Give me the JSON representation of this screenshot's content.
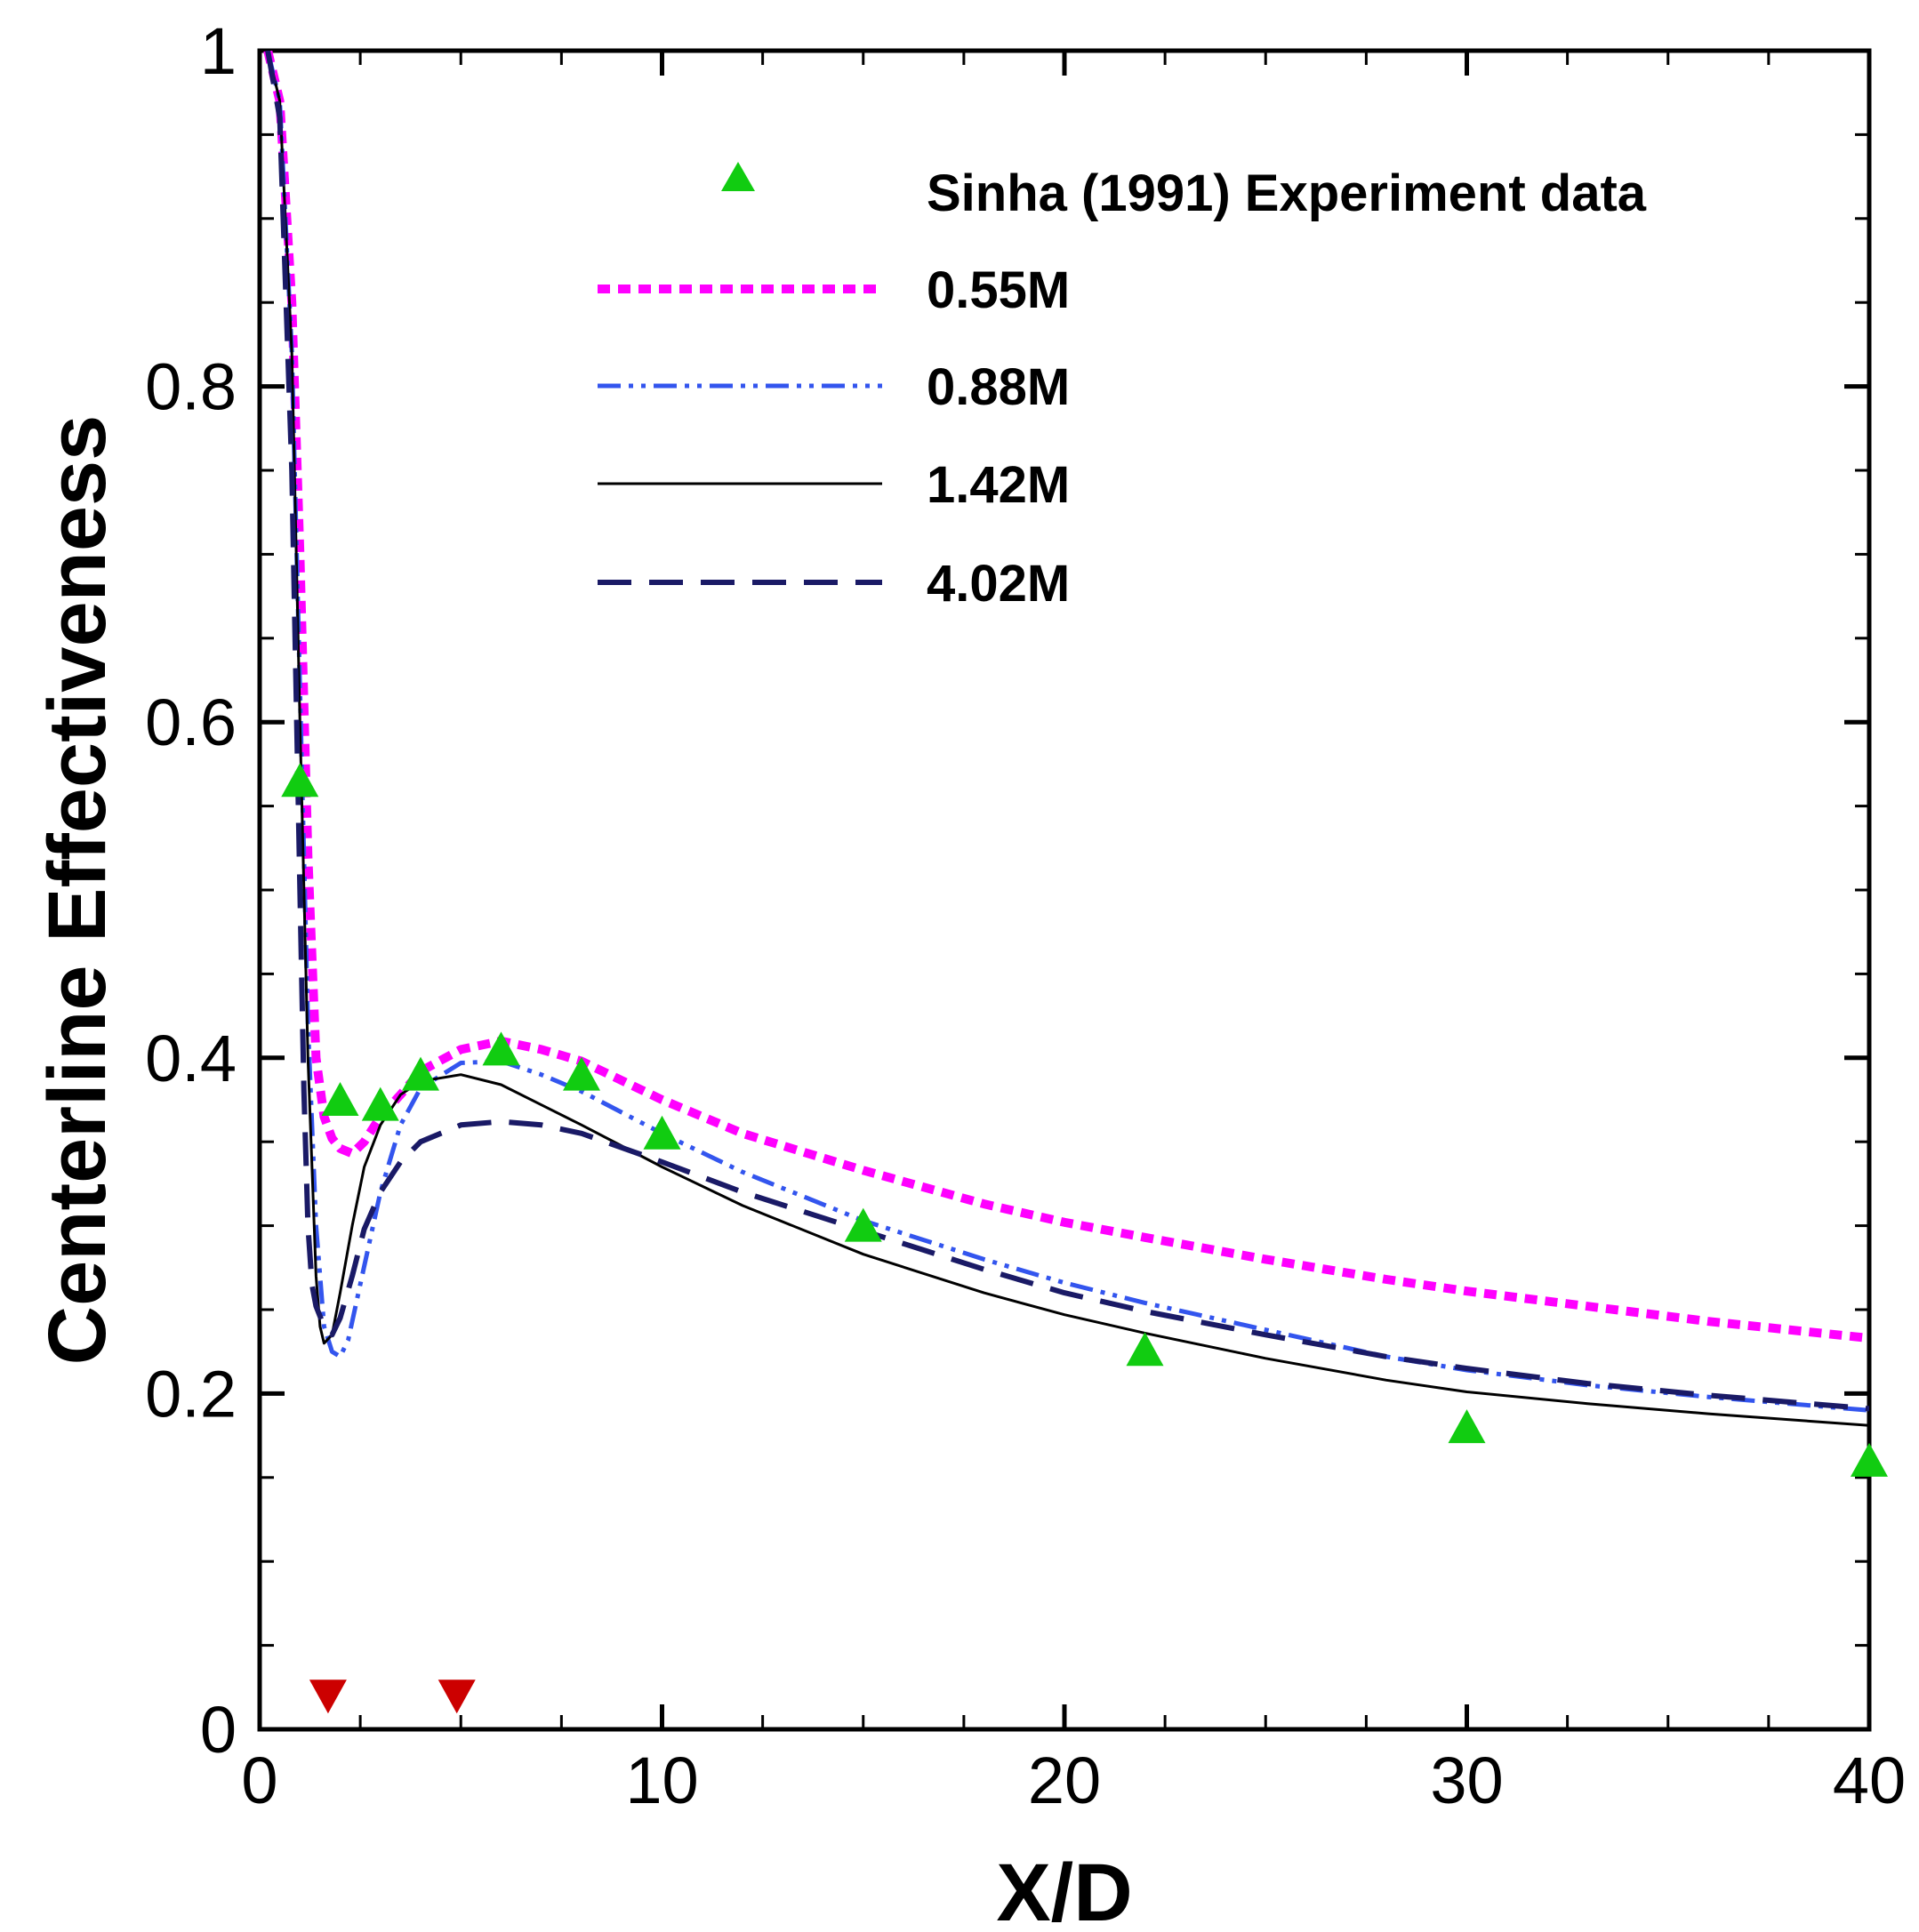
{
  "chart_data": {
    "type": "line",
    "title": "",
    "xlabel": "X/D",
    "ylabel": "Centerline Effectiveness",
    "xlim": [
      0,
      40
    ],
    "ylim": [
      0,
      1
    ],
    "x_ticks": [
      "0",
      "10",
      "20",
      "30",
      "40"
    ],
    "y_ticks": [
      "0",
      "0.2",
      "0.4",
      "0.6",
      "0.8",
      "1"
    ],
    "x_tick_values": [
      0,
      10,
      20,
      30,
      40
    ],
    "y_tick_values": [
      0,
      0.2,
      0.4,
      0.6,
      0.8,
      1
    ],
    "grid": false,
    "legend_position": "top-right",
    "legend": [
      "Sinha (1991) Experiment data",
      "0.55M",
      "0.88M",
      "1.42M",
      "4.02M"
    ],
    "series": [
      {
        "name": "0.55M",
        "style": "dotted",
        "color": "#ff00ff",
        "x": [
          0.2,
          0.5,
          0.8,
          1.0,
          1.2,
          1.4,
          1.6,
          1.8,
          2.0,
          2.3,
          2.6,
          3.0,
          3.5,
          4.0,
          5.0,
          6.0,
          7.0,
          8.0,
          10,
          12,
          15,
          18,
          20,
          22,
          25,
          28,
          30,
          33,
          36,
          40
        ],
        "y": [
          1.0,
          0.97,
          0.85,
          0.7,
          0.52,
          0.4,
          0.365,
          0.352,
          0.346,
          0.343,
          0.35,
          0.365,
          0.378,
          0.392,
          0.405,
          0.41,
          0.405,
          0.398,
          0.375,
          0.355,
          0.333,
          0.313,
          0.302,
          0.293,
          0.28,
          0.268,
          0.261,
          0.252,
          0.243,
          0.233
        ]
      },
      {
        "name": "0.88M",
        "style": "dash-dot",
        "color": "#3355ee",
        "x": [
          0.2,
          0.5,
          0.8,
          1.0,
          1.2,
          1.4,
          1.6,
          1.8,
          2.0,
          2.2,
          2.5,
          3.0,
          3.5,
          4.0,
          5.0,
          6.0,
          7.0,
          8.0,
          10,
          12,
          15,
          18,
          20,
          22,
          25,
          28,
          30,
          33,
          36,
          40
        ],
        "y": [
          1.0,
          0.97,
          0.82,
          0.62,
          0.42,
          0.3,
          0.24,
          0.225,
          0.222,
          0.232,
          0.265,
          0.32,
          0.36,
          0.382,
          0.397,
          0.398,
          0.39,
          0.38,
          0.355,
          0.332,
          0.303,
          0.28,
          0.266,
          0.254,
          0.238,
          0.222,
          0.214,
          0.205,
          0.198,
          0.19
        ]
      },
      {
        "name": "1.42M",
        "style": "solid",
        "color": "#000000",
        "x": [
          0.2,
          0.5,
          0.8,
          1.0,
          1.2,
          1.4,
          1.5,
          1.6,
          1.8,
          2.0,
          2.3,
          2.6,
          3.0,
          3.5,
          4.0,
          5.0,
          6.0,
          7.0,
          8.0,
          10,
          12,
          15,
          18,
          20,
          22,
          25,
          28,
          30,
          33,
          36,
          40
        ],
        "y": [
          1.0,
          0.97,
          0.82,
          0.6,
          0.4,
          0.27,
          0.24,
          0.23,
          0.235,
          0.26,
          0.3,
          0.335,
          0.36,
          0.378,
          0.386,
          0.39,
          0.384,
          0.372,
          0.36,
          0.335,
          0.312,
          0.283,
          0.26,
          0.247,
          0.236,
          0.221,
          0.208,
          0.201,
          0.194,
          0.188,
          0.181
        ]
      },
      {
        "name": "4.02M",
        "style": "dashed",
        "color": "#1a1a66",
        "x": [
          0.2,
          0.5,
          0.8,
          1.0,
          1.1,
          1.2,
          1.3,
          1.4,
          1.6,
          1.8,
          2.0,
          2.3,
          2.6,
          3.0,
          3.5,
          4.0,
          5.0,
          6.0,
          7.0,
          8.0,
          10,
          12,
          15,
          18,
          20,
          22,
          25,
          28,
          30,
          33,
          36,
          40
        ],
        "y": [
          1.0,
          0.96,
          0.75,
          0.5,
          0.38,
          0.3,
          0.265,
          0.252,
          0.24,
          0.235,
          0.245,
          0.27,
          0.298,
          0.32,
          0.338,
          0.35,
          0.36,
          0.362,
          0.36,
          0.355,
          0.338,
          0.32,
          0.297,
          0.274,
          0.26,
          0.249,
          0.235,
          0.222,
          0.215,
          0.206,
          0.199,
          0.191
        ]
      }
    ],
    "experiment": {
      "name": "Sinha (1991) Experiment data",
      "marker": "triangle-up",
      "color": "#11cc11",
      "x": [
        1,
        2,
        3,
        4,
        6,
        8,
        10,
        15,
        22,
        30,
        40
      ],
      "y": [
        0.565,
        0.375,
        0.372,
        0.39,
        0.405,
        0.39,
        0.355,
        0.3,
        0.226,
        0.18,
        0.16
      ]
    },
    "hole_markers": {
      "marker": "triangle-down",
      "color": "#cc0000",
      "x": [
        1.7,
        4.9
      ],
      "y": [
        0.02,
        0.02
      ]
    }
  }
}
